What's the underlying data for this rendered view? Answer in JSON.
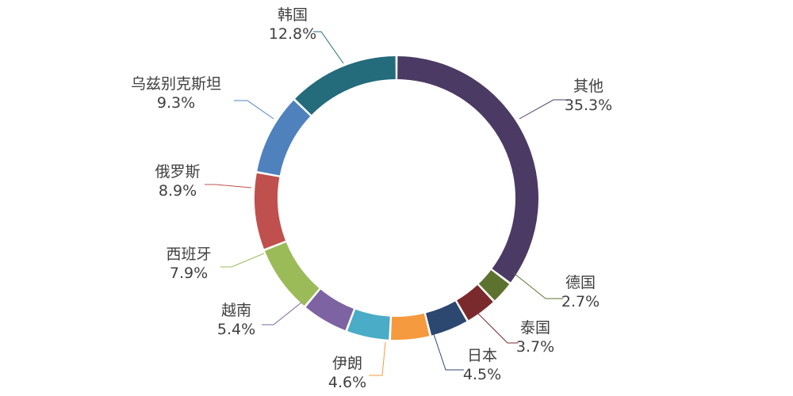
{
  "chart_data": {
    "type": "pie",
    "subtype": "donut",
    "title": "",
    "legend": "none",
    "slices": [
      {
        "label": "其他",
        "value": 35.3,
        "value_label": "35.3%",
        "color": "#4B3A63"
      },
      {
        "label": "德国",
        "value": 2.7,
        "value_label": "2.7%",
        "color": "#5E7230"
      },
      {
        "label": "泰国",
        "value": 3.7,
        "value_label": "3.7%",
        "color": "#7A2A2C"
      },
      {
        "label": "日本",
        "value": 4.5,
        "value_label": "4.5%",
        "color": "#2C4770"
      },
      {
        "label": "伊朗",
        "value": 4.6,
        "value_label": "4.6%",
        "color": "#F59A3E"
      },
      {
        "label": "",
        "value": 5.0,
        "value_label": "",
        "color": "#4AACC6"
      },
      {
        "label": "越南",
        "value": 5.4,
        "value_label": "5.4%",
        "color": "#7E63A2"
      },
      {
        "label": "西班牙",
        "value": 7.9,
        "value_label": "7.9%",
        "color": "#9BBB59"
      },
      {
        "label": "俄罗斯",
        "value": 8.9,
        "value_label": "8.9%",
        "color": "#C0504D"
      },
      {
        "label": "乌兹别克斯坦",
        "value": 9.3,
        "value_label": "9.3%",
        "color": "#4F81BD"
      },
      {
        "label": "韩国",
        "value": 12.8,
        "value_label": "12.8%",
        "color": "#246B7C"
      }
    ]
  }
}
